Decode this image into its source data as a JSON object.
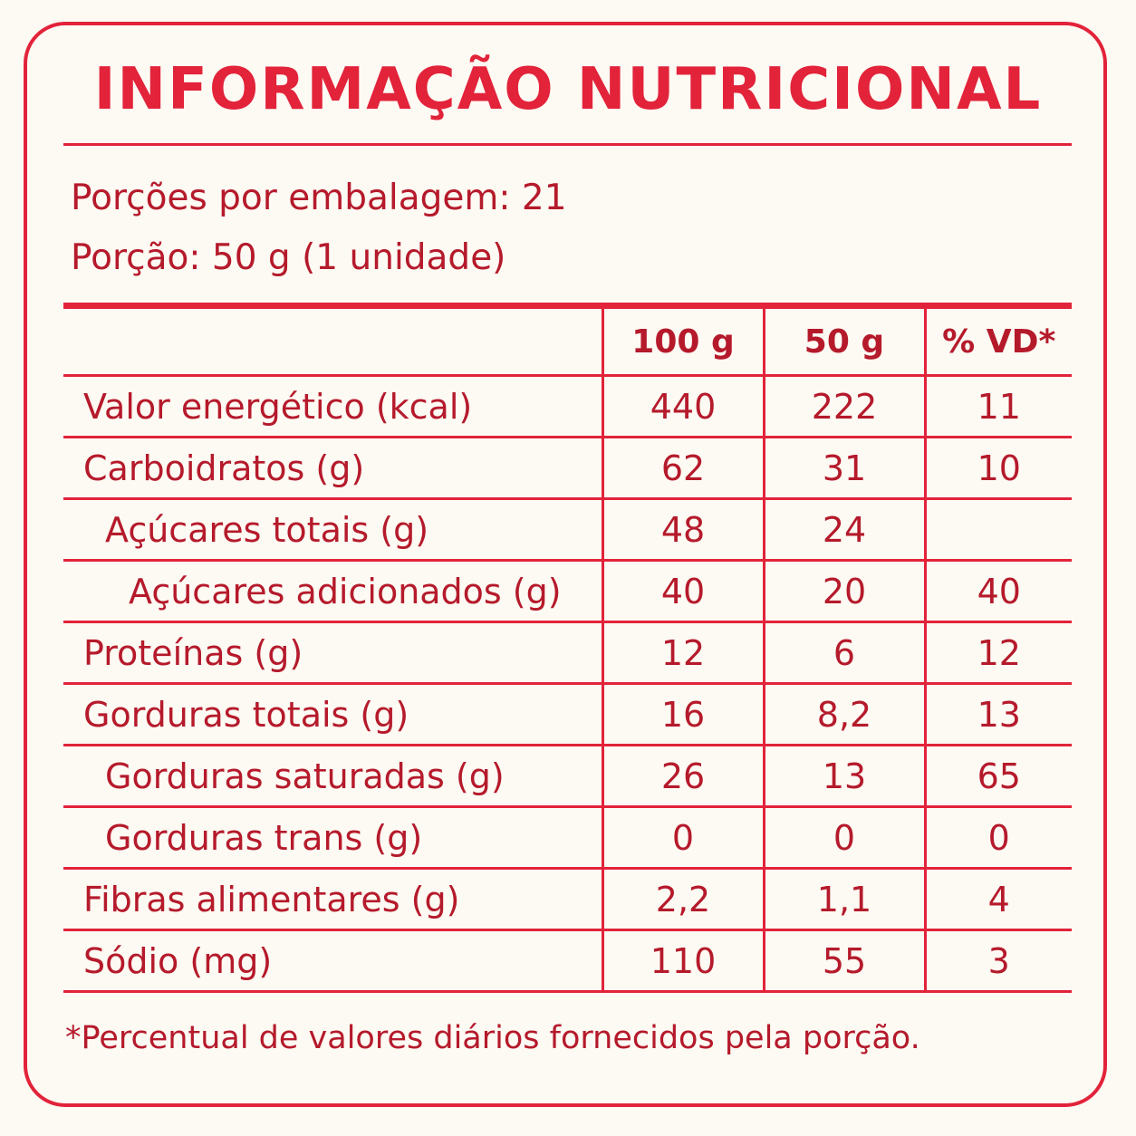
{
  "header": {
    "title": "INFORMAÇÃO NUTRICIONAL"
  },
  "serving": {
    "portions": "Porções por embalagem: 21",
    "portion": "Porção: 50 g (1 unidade)"
  },
  "table": {
    "columns": [
      "100 g",
      "50 g",
      "% VD*"
    ],
    "rows": [
      [
        "Valor energético (kcal)",
        "440",
        "222",
        "11"
      ],
      [
        "Carboidratos (g)",
        "62",
        "31",
        "10"
      ],
      [
        "Açúcares totais (g)",
        "48",
        "24",
        null
      ],
      [
        "Açúcares adicionados (g)",
        "40",
        "20",
        "40"
      ],
      [
        "Proteínas (g)",
        "12",
        "6",
        "12"
      ],
      [
        "Gorduras totais (g)",
        "16",
        "8,2",
        "13"
      ],
      [
        "Gorduras saturadas (g)",
        "26",
        "13",
        "65"
      ],
      [
        "Gorduras trans (g)",
        "0",
        "0",
        "0"
      ],
      [
        "Fibras alimentares (g)",
        "2,2",
        "1,1",
        "4"
      ],
      [
        "Sódio (mg)",
        "110",
        "55",
        "3"
      ]
    ]
  },
  "footnote": "*Percentual de valores diários fornecidos pela porção."
}
